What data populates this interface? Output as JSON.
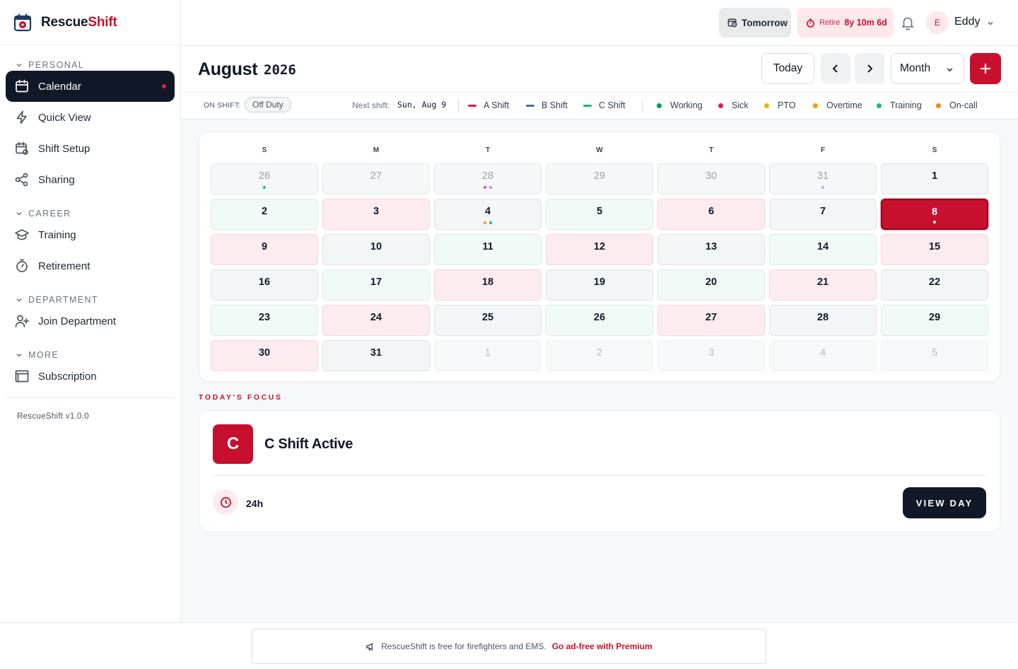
{
  "brand": {
    "name_part1": "Rescue",
    "name_part2": "Shift",
    "version": "RescueShift v1.0.0"
  },
  "sidebar": {
    "sections": [
      {
        "label": "PERSONAL",
        "items": [
          {
            "label": "Calendar",
            "icon": "calendar-icon",
            "active": true,
            "has_dot": true
          },
          {
            "label": "Quick View",
            "icon": "lightning-icon"
          },
          {
            "label": "Shift Setup",
            "icon": "calendar-settings-icon"
          },
          {
            "label": "Sharing",
            "icon": "share-icon"
          }
        ]
      },
      {
        "label": "CAREER",
        "items": [
          {
            "label": "Training",
            "icon": "graduation-cap-icon"
          },
          {
            "label": "Retirement",
            "icon": "timer-icon"
          }
        ]
      },
      {
        "label": "DEPARTMENT",
        "items": [
          {
            "label": "Join Department",
            "icon": "user-plus-icon"
          }
        ]
      },
      {
        "label": "MORE",
        "items": [
          {
            "label": "Subscription",
            "icon": "card-icon"
          }
        ]
      }
    ]
  },
  "topbar": {
    "tomorrow_label": "Tomorrow",
    "retire_label": "Retire",
    "retire_value": "8y 10m 6d",
    "avatar_initial": "E",
    "user_name": "Eddy"
  },
  "header": {
    "month": "August",
    "year": "2026",
    "today_label": "Today",
    "view_selected": "Month"
  },
  "legend": {
    "on_shift_label": "ON SHIFT:",
    "on_shift_value": "Off Duty",
    "next_shift_label": "Next shift:",
    "next_shift_value": "Sun, Aug 9",
    "shifts": [
      {
        "label": "A Shift",
        "color": "#e11d48"
      },
      {
        "label": "B Shift",
        "color": "#3f6f9f"
      },
      {
        "label": "C Shift",
        "color": "#10b981"
      }
    ],
    "statuses": [
      {
        "label": "Working",
        "color": "#059669"
      },
      {
        "label": "Sick",
        "color": "#e11d48"
      },
      {
        "label": "PTO",
        "color": "#eab308"
      },
      {
        "label": "Overtime",
        "color": "#f59e0b"
      },
      {
        "label": "Training",
        "color": "#10b981"
      },
      {
        "label": "On-call",
        "color": "#ea8a1a"
      }
    ]
  },
  "calendar": {
    "weekdays": [
      "S",
      "M",
      "T",
      "W",
      "T",
      "F",
      "S"
    ],
    "weeks": [
      [
        {
          "day": "26",
          "type": "muted",
          "dots": [
            "#10b981"
          ]
        },
        {
          "day": "27",
          "type": "muted"
        },
        {
          "day": "28",
          "type": "muted",
          "dots": [
            "#ec4899",
            "#a78bfa"
          ]
        },
        {
          "day": "29",
          "type": "muted"
        },
        {
          "day": "30",
          "type": "muted"
        },
        {
          "day": "31",
          "type": "muted",
          "dots": [
            "#a5b4fc"
          ]
        },
        {
          "day": "1",
          "type": "gray"
        }
      ],
      [
        {
          "day": "2",
          "type": "green"
        },
        {
          "day": "3",
          "type": "red"
        },
        {
          "day": "4",
          "type": "gray",
          "dots": [
            "#f59e0b",
            "#10b981"
          ]
        },
        {
          "day": "5",
          "type": "green"
        },
        {
          "day": "6",
          "type": "red"
        },
        {
          "day": "7",
          "type": "gray"
        },
        {
          "day": "8",
          "type": "selected",
          "dots": [
            "#ffffff"
          ]
        }
      ],
      [
        {
          "day": "9",
          "type": "red"
        },
        {
          "day": "10",
          "type": "gray"
        },
        {
          "day": "11",
          "type": "green"
        },
        {
          "day": "12",
          "type": "red"
        },
        {
          "day": "13",
          "type": "gray"
        },
        {
          "day": "14",
          "type": "green"
        },
        {
          "day": "15",
          "type": "red"
        }
      ],
      [
        {
          "day": "16",
          "type": "gray"
        },
        {
          "day": "17",
          "type": "green"
        },
        {
          "day": "18",
          "type": "red"
        },
        {
          "day": "19",
          "type": "gray"
        },
        {
          "day": "20",
          "type": "green"
        },
        {
          "day": "21",
          "type": "red"
        },
        {
          "day": "22",
          "type": "gray"
        }
      ],
      [
        {
          "day": "23",
          "type": "green"
        },
        {
          "day": "24",
          "type": "red"
        },
        {
          "day": "25",
          "type": "gray"
        },
        {
          "day": "26",
          "type": "green"
        },
        {
          "day": "27",
          "type": "red"
        },
        {
          "day": "28",
          "type": "gray"
        },
        {
          "day": "29",
          "type": "green"
        }
      ],
      [
        {
          "day": "30",
          "type": "red"
        },
        {
          "day": "31",
          "type": "gray"
        },
        {
          "day": "1",
          "type": "faint"
        },
        {
          "day": "2",
          "type": "faint"
        },
        {
          "day": "3",
          "type": "faint"
        },
        {
          "day": "4",
          "type": "faint"
        },
        {
          "day": "5",
          "type": "faint"
        }
      ]
    ]
  },
  "focus": {
    "section_label": "TODAY'S FOCUS",
    "badge": "C",
    "title": "C Shift Active",
    "hours": "24h",
    "view_day_label": "VIEW DAY"
  },
  "footer": {
    "ad_text": "RescueShift is free for firefighters and EMS.",
    "ad_link": "Go ad-free with Premium"
  },
  "colors": {
    "brand_red": "#c8102e",
    "dark": "#111827"
  }
}
